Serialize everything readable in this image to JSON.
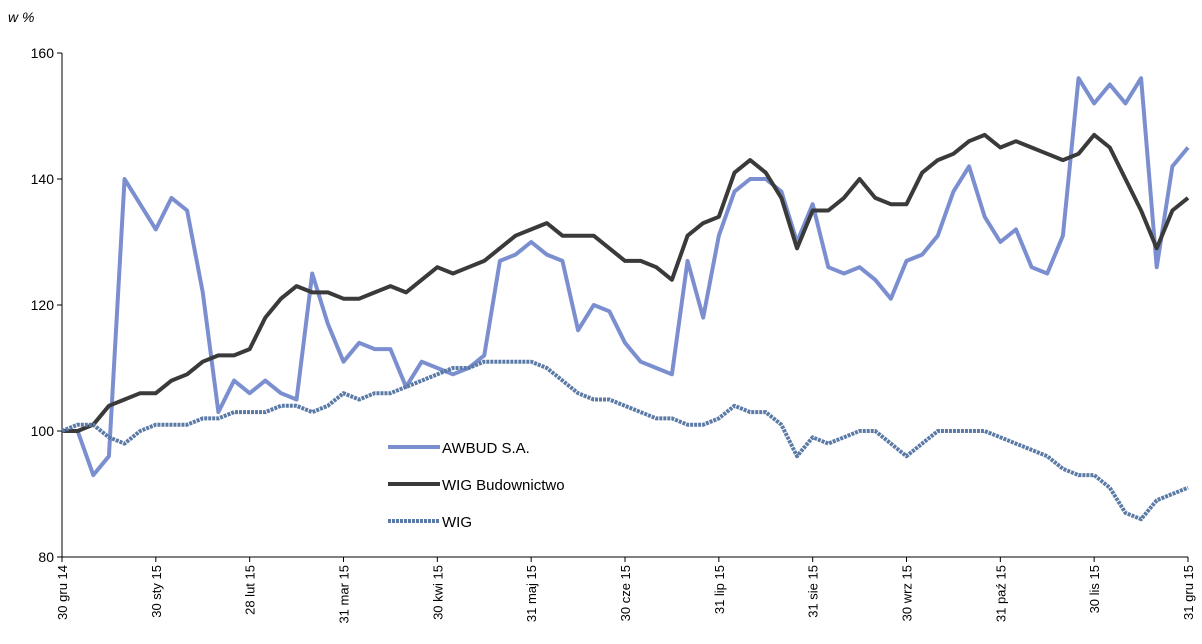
{
  "chart_data": {
    "type": "line",
    "y_label": "w %",
    "ylim": [
      80,
      160
    ],
    "yticks": [
      80,
      100,
      120,
      140,
      160
    ],
    "categories": [
      "30 gru 14",
      null,
      null,
      null,
      null,
      null,
      "30 sty 15",
      null,
      null,
      null,
      null,
      null,
      "28 lut 15",
      null,
      null,
      null,
      null,
      null,
      "31 mar 15",
      null,
      null,
      null,
      null,
      null,
      "30 kwi 15",
      null,
      null,
      null,
      null,
      null,
      "31 maj 15",
      null,
      null,
      null,
      null,
      null,
      "30 cze 15",
      null,
      null,
      null,
      null,
      null,
      "31 lip 15",
      null,
      null,
      null,
      null,
      null,
      "31 sie 15",
      null,
      null,
      null,
      null,
      null,
      "30 wrz 15",
      null,
      null,
      null,
      null,
      null,
      "31 paź 15",
      null,
      null,
      null,
      null,
      null,
      "30 lis 15",
      null,
      null,
      null,
      null,
      null,
      "31 gru 15"
    ],
    "series": [
      {
        "name": "AWBUD S.A.",
        "color": "#7b8fd0",
        "values": [
          100,
          100,
          93,
          96,
          140,
          136,
          132,
          137,
          135,
          122,
          103,
          108,
          106,
          108,
          106,
          105,
          125,
          117,
          111,
          114,
          113,
          113,
          107,
          111,
          110,
          109,
          110,
          112,
          127,
          128,
          130,
          128,
          127,
          116,
          120,
          119,
          114,
          111,
          110,
          109,
          127,
          118,
          131,
          138,
          140,
          140,
          138,
          130,
          136,
          126,
          125,
          126,
          124,
          121,
          127,
          128,
          131,
          138,
          142,
          134,
          130,
          132,
          126,
          125,
          131,
          156,
          152,
          155,
          152,
          156,
          126,
          142,
          145
        ]
      },
      {
        "name": "WIG Budownictwo",
        "color": "#3a3a3a",
        "values": [
          100,
          100,
          101,
          104,
          105,
          106,
          106,
          108,
          109,
          111,
          112,
          112,
          113,
          118,
          121,
          123,
          122,
          122,
          121,
          121,
          122,
          123,
          122,
          124,
          126,
          125,
          126,
          127,
          129,
          131,
          132,
          133,
          131,
          131,
          131,
          129,
          127,
          127,
          126,
          124,
          131,
          133,
          134,
          141,
          143,
          141,
          137,
          129,
          135,
          135,
          137,
          140,
          137,
          136,
          136,
          141,
          143,
          144,
          146,
          147,
          145,
          146,
          145,
          144,
          143,
          144,
          147,
          145,
          140,
          135,
          129,
          135,
          137
        ]
      },
      {
        "name": "WIG",
        "color": "#5b7aa6",
        "values": [
          100,
          101,
          101,
          99,
          98,
          100,
          101,
          101,
          101,
          102,
          102,
          103,
          103,
          103,
          104,
          104,
          103,
          104,
          106,
          105,
          106,
          106,
          107,
          108,
          109,
          110,
          110,
          111,
          111,
          111,
          111,
          110,
          108,
          106,
          105,
          105,
          104,
          103,
          102,
          102,
          101,
          101,
          102,
          104,
          103,
          103,
          101,
          96,
          99,
          98,
          99,
          100,
          100,
          98,
          96,
          98,
          100,
          100,
          100,
          100,
          99,
          98,
          97,
          96,
          94,
          93,
          93,
          91,
          87,
          86,
          89,
          90,
          91
        ]
      }
    ]
  }
}
